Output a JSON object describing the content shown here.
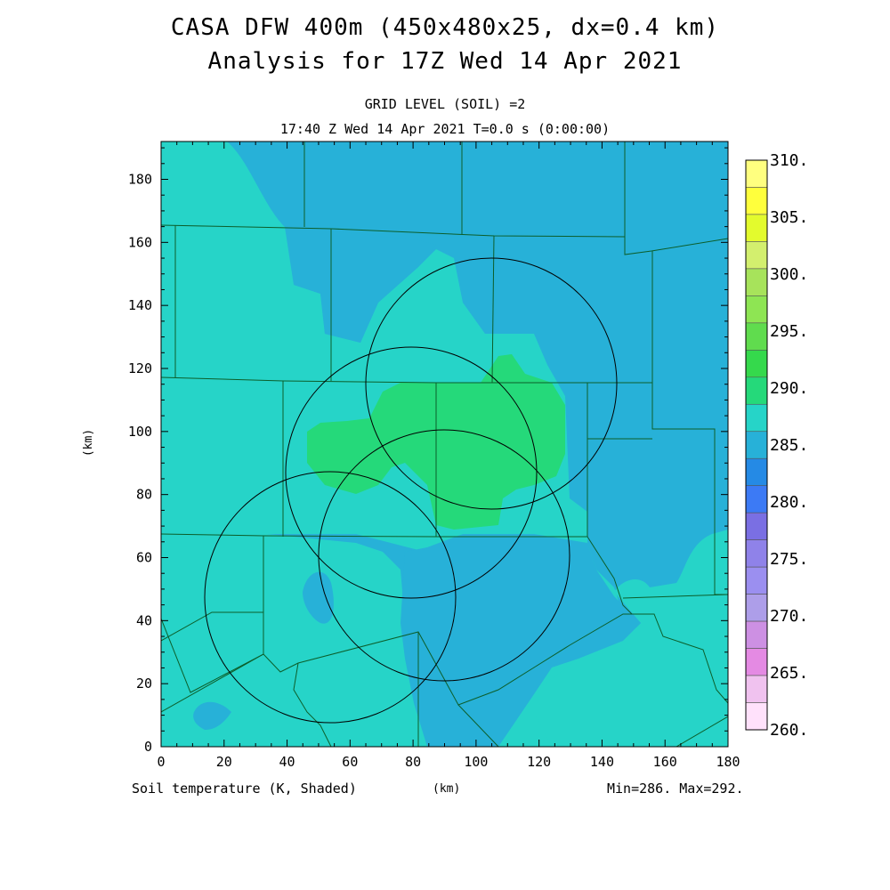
{
  "title_line1": "CASA DFW 400m (450x480x25, dx=0.4 km)",
  "title_line2": "Analysis for 17Z Wed 14 Apr 2021",
  "grid_level": "GRID LEVEL (SOIL) =2",
  "valid_time": "17:40 Z Wed 14 Apr 2021   T=0.0 s (0:00:00)",
  "field_label": "Soil temperature (K, Shaded)",
  "x_axis_label": "(km)",
  "y_axis_label": "(km)",
  "min_max": "Min=286. Max=292.",
  "x_ticks": [
    "0",
    "20",
    "40",
    "60",
    "80",
    "100",
    "120",
    "140",
    "160",
    "180"
  ],
  "y_ticks": [
    "0",
    "20",
    "40",
    "60",
    "80",
    "100",
    "120",
    "140",
    "160",
    "180"
  ],
  "colorbar": {
    "labels": [
      "310.",
      "305.",
      "300.",
      "295.",
      "290.",
      "285.",
      "280.",
      "275.",
      "270.",
      "265.",
      "260."
    ],
    "colors": [
      "#ffff7f",
      "#ffff3c",
      "#e3fb2d",
      "#d3ef6e",
      "#a7e35b",
      "#8ee553",
      "#60dc4e",
      "#35d94c",
      "#25d97a",
      "#26d4c8",
      "#27b1d8",
      "#258ae5",
      "#3c7af5",
      "#7a6fe3",
      "#8f82e9",
      "#9b8ff0",
      "#ad9ee9",
      "#cd90e3",
      "#e48ae3",
      "#f0c2ef",
      "#ffe1fb"
    ]
  },
  "field_colors": {
    "c285": "#27b1d8",
    "c288": "#26d4c8",
    "c290": "#25d97a"
  },
  "chart_data": {
    "type": "heatmap",
    "variable": "Soil temperature (K, Shaded)",
    "xlabel": "(km)",
    "ylabel": "(km)",
    "xlim": [
      0,
      180
    ],
    "ylim": [
      0,
      192
    ],
    "colorbar_range": [
      260,
      310
    ],
    "min": 286,
    "max": 292,
    "radar_circles_center_km": [
      [
        54,
        48
      ],
      [
        80,
        87
      ],
      [
        105,
        115
      ],
      [
        90,
        61
      ]
    ],
    "radar_radius_km": 40
  }
}
